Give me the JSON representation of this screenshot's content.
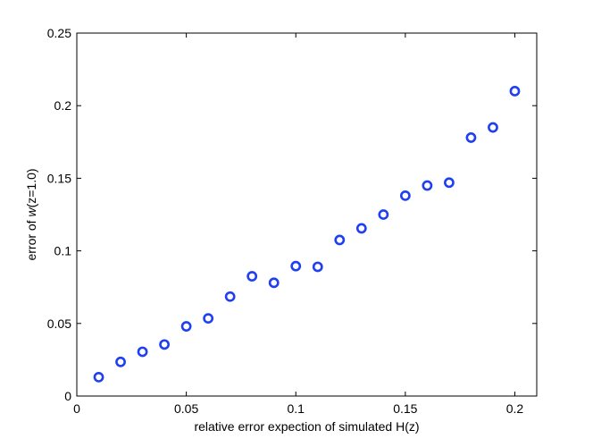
{
  "chart_data": {
    "type": "scatter",
    "title": "",
    "xlabel": "relative error expection of simulated H(z)",
    "ylabel": {
      "prefix": "error of ",
      "italic": "w",
      "suffix": "(z=1.0)"
    },
    "xlim": [
      0,
      0.21
    ],
    "ylim": [
      0,
      0.25
    ],
    "xticks": [
      0,
      0.05,
      0.1,
      0.15,
      0.2
    ],
    "xtick_labels": [
      "0",
      "0.05",
      "0.1",
      "0.15",
      "0.2"
    ],
    "yticks": [
      0,
      0.05,
      0.1,
      0.15,
      0.2,
      0.25
    ],
    "ytick_labels": [
      "0",
      "0.05",
      "0.1",
      "0.15",
      "0.2",
      "0.25"
    ],
    "grid": false,
    "marker": "open-circle",
    "marker_color": "#1f3ff0",
    "series": [
      {
        "x": [
          0.01,
          0.02,
          0.03,
          0.04,
          0.05,
          0.06,
          0.07,
          0.08,
          0.09,
          0.1,
          0.11,
          0.12,
          0.13,
          0.14,
          0.15,
          0.16,
          0.17,
          0.18,
          0.19,
          0.2
        ],
        "y": [
          0.013,
          0.0235,
          0.0305,
          0.0355,
          0.048,
          0.0535,
          0.0685,
          0.0825,
          0.078,
          0.0895,
          0.089,
          0.1075,
          0.1155,
          0.125,
          0.138,
          0.145,
          0.147,
          0.178,
          0.185,
          0.21
        ]
      }
    ]
  }
}
